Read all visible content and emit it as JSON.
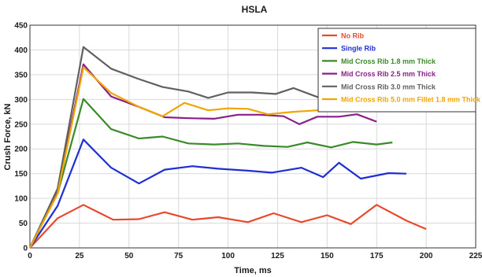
{
  "chart_data": {
    "type": "line",
    "title": "HSLA",
    "xlabel": "Time, ms",
    "ylabel": "Crush Force, kN",
    "xlim": [
      0,
      225
    ],
    "ylim": [
      0,
      450
    ],
    "xticks": [
      0,
      25,
      50,
      75,
      100,
      125,
      150,
      175,
      200,
      225
    ],
    "yticks": [
      0,
      50,
      100,
      150,
      200,
      250,
      300,
      350,
      400,
      450
    ],
    "grid": true,
    "legend_position": "top-right",
    "series": [
      {
        "name": "No Rib",
        "color": "#e8492c",
        "x": [
          0,
          14,
          27,
          42,
          55,
          68,
          82,
          95,
          110,
          123,
          137,
          150,
          162,
          175,
          190,
          200
        ],
        "y": [
          0,
          60,
          87,
          57,
          58,
          72,
          57,
          62,
          52,
          70,
          52,
          66,
          48,
          87,
          55,
          38
        ]
      },
      {
        "name": "Single Rib",
        "color": "#1f2fd1",
        "x": [
          0,
          14,
          27,
          41,
          55,
          68,
          82,
          95,
          110,
          122,
          137,
          148,
          156,
          167,
          181,
          190
        ],
        "y": [
          0,
          85,
          219,
          162,
          130,
          158,
          165,
          160,
          156,
          152,
          162,
          143,
          172,
          140,
          151,
          150
        ]
      },
      {
        "name": "Mid Cross Rib 1.8 mm Thick",
        "color": "#3a8a2a",
        "x": [
          0,
          14,
          27,
          41,
          55,
          67,
          80,
          93,
          105,
          118,
          130,
          140,
          152,
          163,
          175,
          183
        ],
        "y": [
          0,
          110,
          301,
          240,
          221,
          225,
          211,
          209,
          211,
          206,
          204,
          213,
          203,
          214,
          209,
          213
        ]
      },
      {
        "name": "Mid Cross Rib 2.5 mm Thick",
        "color": "#8a1f8a",
        "x": [
          0,
          14,
          27,
          41,
          55,
          68,
          80,
          93,
          105,
          116,
          128,
          136,
          145,
          156,
          165,
          175
        ],
        "y": [
          0,
          115,
          371,
          306,
          285,
          264,
          262,
          261,
          269,
          269,
          266,
          250,
          265,
          265,
          270,
          255
        ]
      },
      {
        "name": "Mid Cross Rib 3.0 mm Thick",
        "color": "#606060",
        "x": [
          0,
          14,
          27,
          41,
          55,
          67,
          80,
          90,
          100,
          112,
          124,
          133,
          145,
          152
        ],
        "y": [
          0,
          120,
          406,
          362,
          341,
          325,
          316,
          303,
          314,
          314,
          311,
          323,
          305,
          308
        ]
      },
      {
        "name": "Mid Cross Rib 5.0 mm Fillet 1.8 mm Thick",
        "color": "#f0a500",
        "x": [
          0,
          14,
          27,
          41,
          55,
          67,
          78,
          90,
          100,
          110,
          120,
          133,
          145,
          155,
          165,
          177
        ],
        "y": [
          0,
          110,
          365,
          313,
          285,
          266,
          293,
          278,
          282,
          281,
          270,
          275,
          278,
          278,
          277,
          278
        ]
      }
    ]
  }
}
